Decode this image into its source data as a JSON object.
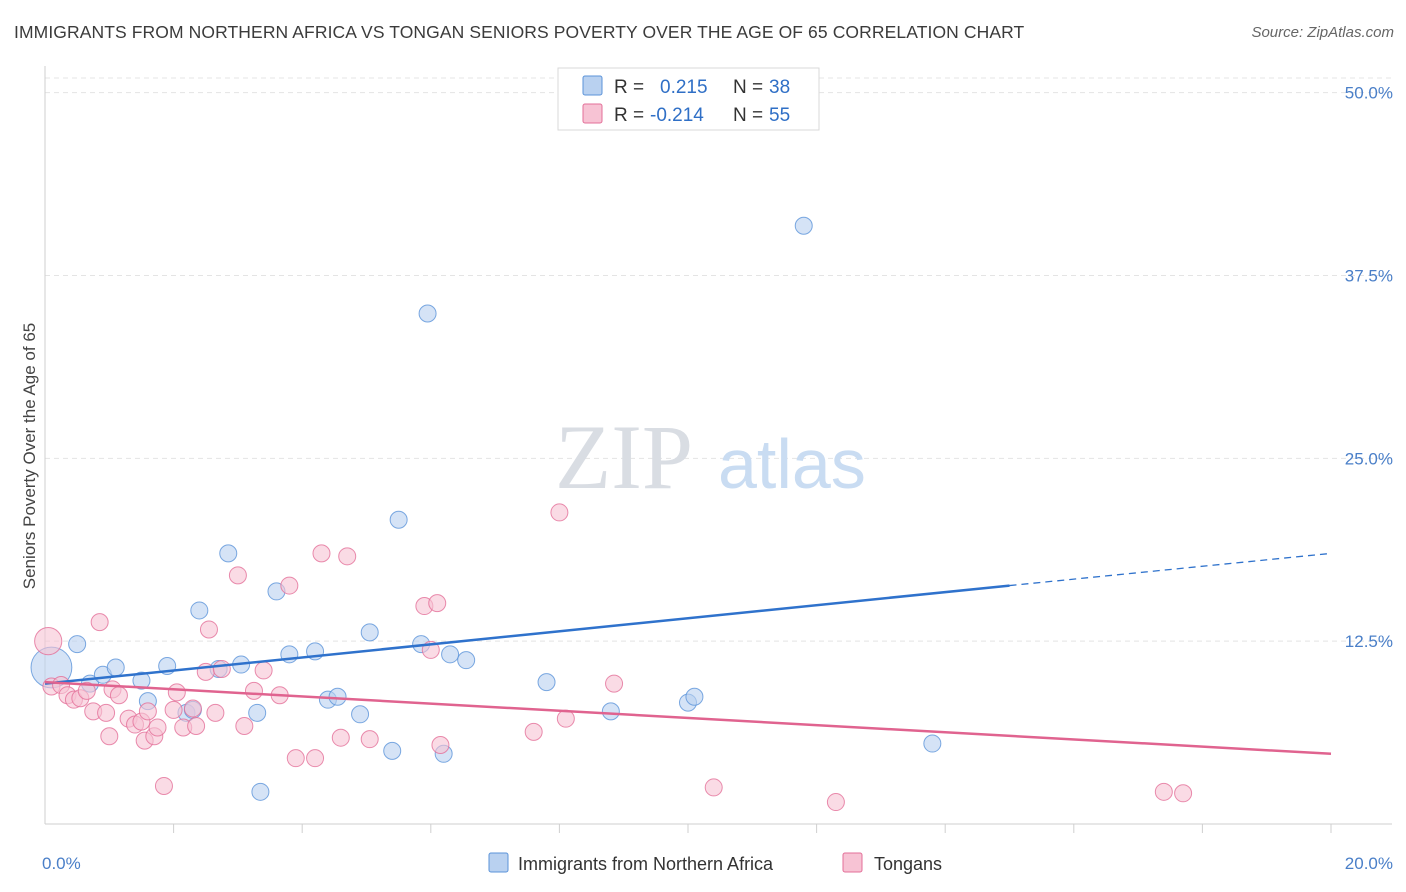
{
  "header": {
    "title": "IMMIGRANTS FROM NORTHERN AFRICA VS TONGAN SENIORS POVERTY OVER THE AGE OF 65 CORRELATION CHART",
    "source": "Source: ZipAtlas.com"
  },
  "watermark": {
    "zip": "ZIP",
    "atlas": "atlas"
  },
  "legend": {
    "r_label": "R =",
    "n_label": "N =",
    "rows": [
      {
        "r": "0.215",
        "n": "38"
      },
      {
        "r": "-0.214",
        "n": "55"
      }
    ]
  },
  "chart_data": {
    "type": "scatter",
    "ylabel": "Seniors Poverty Over the Age of 65",
    "xlim": [
      0,
      20
    ],
    "ylim": [
      0,
      51
    ],
    "y_ticks": [
      12.5,
      25.0,
      37.5,
      50.0
    ],
    "y_tick_labels": [
      "12.5%",
      "25.0%",
      "37.5%",
      "50.0%"
    ],
    "x_tick_labels": [
      "0.0%",
      "20.0%"
    ],
    "grid": true,
    "legend_position": "top-center",
    "series": [
      {
        "name": "Immigrants from Northern Africa",
        "color": "#5b93d9",
        "fill": "#b9d1f0",
        "trend": {
          "x0": 0,
          "y0": 9.6,
          "x1": 15,
          "y1": 16.3,
          "dashed_to": 20,
          "dashed_y": 18.5
        },
        "points": [
          [
            0.1,
            10.7,
            2.4
          ],
          [
            0.5,
            12.3,
            1
          ],
          [
            0.7,
            9.6,
            1
          ],
          [
            0.9,
            10.2,
            1
          ],
          [
            1.1,
            10.7,
            1
          ],
          [
            1.5,
            9.8,
            1
          ],
          [
            1.6,
            8.4,
            1
          ],
          [
            1.9,
            10.8,
            1
          ],
          [
            2.2,
            7.6,
            1
          ],
          [
            2.3,
            7.8,
            1
          ],
          [
            2.4,
            14.6,
            1
          ],
          [
            2.7,
            10.6,
            1
          ],
          [
            2.85,
            18.5,
            1
          ],
          [
            3.05,
            10.9,
            1
          ],
          [
            3.3,
            7.6,
            1
          ],
          [
            3.35,
            2.2,
            1
          ],
          [
            3.6,
            15.9,
            1
          ],
          [
            3.8,
            11.6,
            1
          ],
          [
            4.2,
            11.8,
            1
          ],
          [
            4.4,
            8.5,
            1
          ],
          [
            4.55,
            8.7,
            1
          ],
          [
            4.9,
            7.5,
            1
          ],
          [
            5.05,
            13.1,
            1
          ],
          [
            5.4,
            5.0,
            1
          ],
          [
            5.5,
            20.8,
            1
          ],
          [
            5.85,
            12.3,
            1
          ],
          [
            5.95,
            34.9,
            1
          ],
          [
            6.2,
            4.8,
            1
          ],
          [
            6.3,
            11.6,
            1
          ],
          [
            6.55,
            11.2,
            1
          ],
          [
            7.8,
            9.7,
            1
          ],
          [
            8.8,
            7.7,
            1
          ],
          [
            10.0,
            8.3,
            1
          ],
          [
            10.1,
            8.7,
            1
          ],
          [
            11.8,
            40.9,
            1
          ],
          [
            13.8,
            5.5,
            1
          ]
        ]
      },
      {
        "name": "Tongans",
        "color": "#e36f98",
        "fill": "#f7c3d4",
        "trend": {
          "x0": 0,
          "y0": 9.7,
          "x1": 20,
          "y1": 4.8
        },
        "points": [
          [
            0.05,
            12.5,
            1.6
          ],
          [
            0.1,
            9.4,
            1
          ],
          [
            0.25,
            9.5,
            1
          ],
          [
            0.35,
            8.8,
            1
          ],
          [
            0.45,
            8.5,
            1
          ],
          [
            0.55,
            8.6,
            1
          ],
          [
            0.65,
            9.1,
            1
          ],
          [
            0.75,
            7.7,
            1
          ],
          [
            0.85,
            13.8,
            1
          ],
          [
            0.95,
            7.6,
            1
          ],
          [
            1.0,
            6.0,
            1
          ],
          [
            1.05,
            9.2,
            1
          ],
          [
            1.15,
            8.8,
            1
          ],
          [
            1.3,
            7.2,
            1
          ],
          [
            1.4,
            6.8,
            1
          ],
          [
            1.5,
            7.0,
            1
          ],
          [
            1.55,
            5.7,
            1
          ],
          [
            1.6,
            7.7,
            1
          ],
          [
            1.7,
            6.0,
            1
          ],
          [
            1.75,
            6.6,
            1
          ],
          [
            1.85,
            2.6,
            1
          ],
          [
            2.0,
            7.8,
            1
          ],
          [
            2.05,
            9.0,
            1
          ],
          [
            2.15,
            6.6,
            1
          ],
          [
            2.3,
            7.9,
            1
          ],
          [
            2.35,
            6.7,
            1
          ],
          [
            2.5,
            10.4,
            1
          ],
          [
            2.55,
            13.3,
            1
          ],
          [
            2.65,
            7.6,
            1
          ],
          [
            2.75,
            10.6,
            1
          ],
          [
            3.0,
            17.0,
            1
          ],
          [
            3.1,
            6.7,
            1
          ],
          [
            3.25,
            9.1,
            1
          ],
          [
            3.4,
            10.5,
            1
          ],
          [
            3.65,
            8.8,
            1
          ],
          [
            3.8,
            16.3,
            1
          ],
          [
            3.9,
            4.5,
            1
          ],
          [
            4.2,
            4.5,
            1
          ],
          [
            4.3,
            18.5,
            1
          ],
          [
            4.6,
            5.9,
            1
          ],
          [
            4.7,
            18.3,
            1
          ],
          [
            5.05,
            5.8,
            1
          ],
          [
            5.9,
            14.9,
            1
          ],
          [
            6.0,
            11.9,
            1
          ],
          [
            6.1,
            15.1,
            1
          ],
          [
            6.15,
            5.4,
            1
          ],
          [
            7.6,
            6.3,
            1
          ],
          [
            8.0,
            21.3,
            1
          ],
          [
            8.1,
            7.2,
            1
          ],
          [
            8.85,
            9.6,
            1
          ],
          [
            10.4,
            2.5,
            1
          ],
          [
            12.3,
            1.5,
            1
          ],
          [
            17.4,
            2.2,
            1
          ],
          [
            17.7,
            2.1,
            1
          ]
        ]
      }
    ]
  }
}
